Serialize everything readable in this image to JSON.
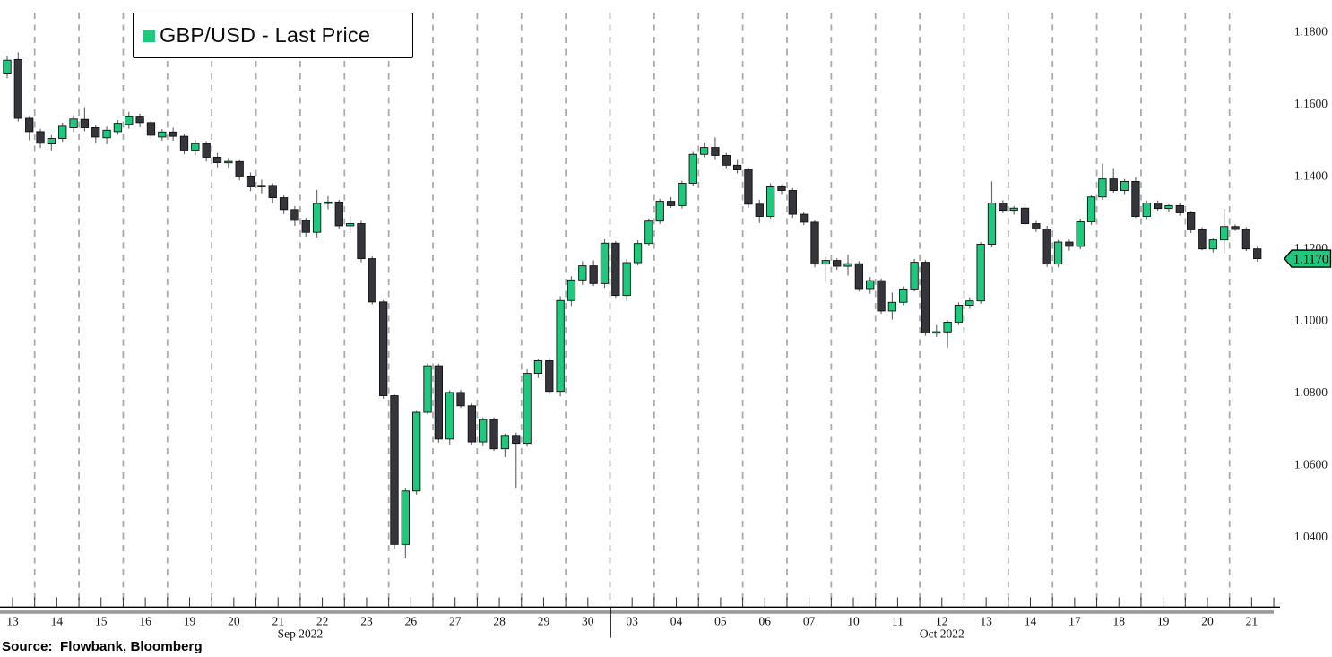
{
  "legend": {
    "label": "GBP/USD - Last Price",
    "marker_color": "#1fc87c"
  },
  "source_note": "Source:  Flowbank, Bloomberg",
  "last_price_tag": {
    "text": "1.1170",
    "value": 1.117,
    "color": "#1fc87c"
  },
  "y_axis": {
    "tick_labels": [
      "1.1800",
      "1.1600",
      "1.1400",
      "1.1200",
      "1.1000",
      "1.0800",
      "1.0600",
      "1.0400"
    ],
    "tick_values": [
      1.18,
      1.16,
      1.14,
      1.12,
      1.1,
      1.08,
      1.06,
      1.04
    ]
  },
  "x_axis": {
    "months": [
      {
        "label": "Sep 2022",
        "day_labels": [
          "13",
          "14",
          "15",
          "16",
          "19",
          "20",
          "21",
          "22",
          "23",
          "26",
          "27",
          "28",
          "29",
          "30"
        ]
      },
      {
        "label": "Oct 2022",
        "day_labels": [
          "03",
          "04",
          "05",
          "06",
          "07",
          "10",
          "11",
          "12",
          "13",
          "14",
          "17",
          "18",
          "19",
          "20",
          "21"
        ]
      }
    ]
  },
  "chart_data": {
    "type": "candlestick",
    "instrument": "GBP/USD",
    "field": "Last Price",
    "title": "GBP/USD - Last Price",
    "candles_per_day": 4,
    "ylim": [
      1.03,
      1.185
    ],
    "grid": "vertical-dashed-daily",
    "legend_position": "top-left",
    "up_color": "#1fc87c",
    "down_color": "#35363c",
    "wick_color": "#6f6f6f",
    "grid_color": "#ababab",
    "ohlc": [
      [
        1.1682,
        1.1732,
        1.167,
        1.172
      ],
      [
        1.1722,
        1.1742,
        1.155,
        1.1559
      ],
      [
        1.1559,
        1.1566,
        1.1498,
        1.1522
      ],
      [
        1.1522,
        1.153,
        1.1477,
        1.149
      ],
      [
        1.1488,
        1.1512,
        1.147,
        1.1503
      ],
      [
        1.1503,
        1.1547,
        1.1494,
        1.1537
      ],
      [
        1.1533,
        1.1568,
        1.1521,
        1.1557
      ],
      [
        1.1556,
        1.159,
        1.1523,
        1.1533
      ],
      [
        1.1533,
        1.1541,
        1.1489,
        1.1507
      ],
      [
        1.1505,
        1.1536,
        1.1487,
        1.1526
      ],
      [
        1.1522,
        1.1554,
        1.1513,
        1.1545
      ],
      [
        1.1542,
        1.1577,
        1.153,
        1.1565
      ],
      [
        1.1565,
        1.1572,
        1.1534,
        1.1547
      ],
      [
        1.1547,
        1.1553,
        1.1501,
        1.1512
      ],
      [
        1.1507,
        1.1529,
        1.1497,
        1.1521
      ],
      [
        1.1521,
        1.1533,
        1.1497,
        1.1509
      ],
      [
        1.1509,
        1.1516,
        1.1459,
        1.1471
      ],
      [
        1.1471,
        1.1499,
        1.1457,
        1.1489
      ],
      [
        1.1489,
        1.1496,
        1.1439,
        1.1451
      ],
      [
        1.1451,
        1.1463,
        1.1423,
        1.1436
      ],
      [
        1.1436,
        1.1449,
        1.1422,
        1.1439
      ],
      [
        1.1439,
        1.1445,
        1.1387,
        1.1399
      ],
      [
        1.1399,
        1.1409,
        1.1357,
        1.1369
      ],
      [
        1.1369,
        1.1389,
        1.1351,
        1.1373
      ],
      [
        1.1373,
        1.1379,
        1.1324,
        1.1339
      ],
      [
        1.1339,
        1.1346,
        1.1294,
        1.1306
      ],
      [
        1.1306,
        1.1316,
        1.1261,
        1.1276
      ],
      [
        1.1276,
        1.1283,
        1.1231,
        1.1243
      ],
      [
        1.1243,
        1.1361,
        1.1229,
        1.1323
      ],
      [
        1.1323,
        1.1343,
        1.1307,
        1.1327
      ],
      [
        1.1327,
        1.1333,
        1.1251,
        1.1261
      ],
      [
        1.1261,
        1.1287,
        1.1241,
        1.1267
      ],
      [
        1.1267,
        1.1275,
        1.116,
        1.117
      ],
      [
        1.117,
        1.1176,
        1.1043,
        1.105
      ],
      [
        1.105,
        1.1055,
        1.0782,
        1.079
      ],
      [
        1.079,
        1.0794,
        1.0364,
        1.0378
      ],
      [
        1.0378,
        1.0533,
        1.0339,
        1.0526
      ],
      [
        1.0526,
        1.075,
        1.0516,
        1.0744
      ],
      [
        1.0744,
        1.088,
        1.0738,
        1.0873
      ],
      [
        1.0873,
        1.0879,
        1.066,
        1.067
      ],
      [
        1.067,
        1.0805,
        1.0655,
        1.0799
      ],
      [
        1.0799,
        1.0806,
        1.0756,
        1.0762
      ],
      [
        1.0762,
        1.0768,
        1.0655,
        1.0662
      ],
      [
        1.0662,
        1.073,
        1.065,
        1.0724
      ],
      [
        1.0724,
        1.073,
        1.0637,
        1.0643
      ],
      [
        1.0643,
        1.0685,
        1.062,
        1.068
      ],
      [
        1.068,
        1.0688,
        1.0533,
        1.0658
      ],
      [
        1.0658,
        1.0863,
        1.0649,
        1.0852
      ],
      [
        1.0852,
        1.0893,
        1.0839,
        1.0887
      ],
      [
        1.0887,
        1.0894,
        1.0794,
        1.0802
      ],
      [
        1.0802,
        1.1066,
        1.0788,
        1.1054
      ],
      [
        1.1054,
        1.1121,
        1.1039,
        1.1111
      ],
      [
        1.1111,
        1.1163,
        1.1097,
        1.115
      ],
      [
        1.115,
        1.1165,
        1.1094,
        1.1101
      ],
      [
        1.1101,
        1.1224,
        1.1089,
        1.1213
      ],
      [
        1.1213,
        1.1219,
        1.1059,
        1.1068
      ],
      [
        1.1068,
        1.1169,
        1.1053,
        1.1159
      ],
      [
        1.1159,
        1.1221,
        1.1151,
        1.1212
      ],
      [
        1.1212,
        1.1281,
        1.1206,
        1.1274
      ],
      [
        1.1274,
        1.1336,
        1.1266,
        1.1329
      ],
      [
        1.1329,
        1.1341,
        1.1311,
        1.1317
      ],
      [
        1.1317,
        1.1386,
        1.1309,
        1.1379
      ],
      [
        1.1379,
        1.1466,
        1.1371,
        1.1459
      ],
      [
        1.1459,
        1.1491,
        1.1451,
        1.1478
      ],
      [
        1.1478,
        1.1506,
        1.1446,
        1.1456
      ],
      [
        1.1456,
        1.1463,
        1.1421,
        1.1429
      ],
      [
        1.1429,
        1.1446,
        1.1406,
        1.1416
      ],
      [
        1.1416,
        1.1423,
        1.1311,
        1.1321
      ],
      [
        1.1321,
        1.1333,
        1.1269,
        1.1287
      ],
      [
        1.1287,
        1.1379,
        1.1281,
        1.1369
      ],
      [
        1.1369,
        1.1375,
        1.1349,
        1.1359
      ],
      [
        1.1359,
        1.1365,
        1.1283,
        1.1293
      ],
      [
        1.1293,
        1.1299,
        1.1263,
        1.1271
      ],
      [
        1.1271,
        1.1277,
        1.1146,
        1.1155
      ],
      [
        1.1155,
        1.1175,
        1.1109,
        1.1165
      ],
      [
        1.1165,
        1.1171,
        1.1139,
        1.1149
      ],
      [
        1.1149,
        1.1181,
        1.1123,
        1.1156
      ],
      [
        1.1156,
        1.1163,
        1.1079,
        1.1087
      ],
      [
        1.1087,
        1.1119,
        1.1073,
        1.1109
      ],
      [
        1.1109,
        1.1115,
        1.1017,
        1.1025
      ],
      [
        1.1025,
        1.1076,
        1.1001,
        1.1049
      ],
      [
        1.1049,
        1.1093,
        1.1041,
        1.1086
      ],
      [
        1.1086,
        1.1169,
        1.1079,
        1.116
      ],
      [
        1.116,
        1.1166,
        1.0956,
        1.0964
      ],
      [
        1.0964,
        1.0986,
        1.0953,
        1.0967
      ],
      [
        1.0967,
        1.0999,
        1.0923,
        1.0994
      ],
      [
        1.0994,
        1.1049,
        1.0986,
        1.1041
      ],
      [
        1.1041,
        1.1063,
        1.1031,
        1.1053
      ],
      [
        1.1053,
        1.1216,
        1.1045,
        1.121
      ],
      [
        1.121,
        1.1384,
        1.1201,
        1.1324
      ],
      [
        1.1324,
        1.1332,
        1.1296,
        1.1304
      ],
      [
        1.1304,
        1.1316,
        1.1292,
        1.131
      ],
      [
        1.131,
        1.1322,
        1.1262,
        1.1267
      ],
      [
        1.1267,
        1.1274,
        1.1244,
        1.1252
      ],
      [
        1.1252,
        1.1261,
        1.1147,
        1.1155
      ],
      [
        1.1155,
        1.1222,
        1.1146,
        1.1216
      ],
      [
        1.1216,
        1.1223,
        1.1192,
        1.1204
      ],
      [
        1.1204,
        1.1281,
        1.1196,
        1.1272
      ],
      [
        1.1272,
        1.1346,
        1.1263,
        1.1341
      ],
      [
        1.1341,
        1.1433,
        1.1333,
        1.1391
      ],
      [
        1.1391,
        1.1421,
        1.1353,
        1.1359
      ],
      [
        1.1359,
        1.1391,
        1.1349,
        1.1384
      ],
      [
        1.1384,
        1.1396,
        1.1283,
        1.1287
      ],
      [
        1.1287,
        1.1331,
        1.1279,
        1.1324
      ],
      [
        1.1324,
        1.1331,
        1.1303,
        1.1309
      ],
      [
        1.1309,
        1.1321,
        1.1299,
        1.1317
      ],
      [
        1.1317,
        1.1323,
        1.1289,
        1.1297
      ],
      [
        1.1297,
        1.1303,
        1.1241,
        1.125
      ],
      [
        1.125,
        1.1257,
        1.1193,
        1.1197
      ],
      [
        1.1197,
        1.1227,
        1.1187,
        1.1222
      ],
      [
        1.1222,
        1.1309,
        1.1185,
        1.1259
      ],
      [
        1.1259,
        1.1265,
        1.1247,
        1.1251
      ],
      [
        1.1251,
        1.1257,
        1.1191,
        1.1197
      ],
      [
        1.1197,
        1.1203,
        1.1161,
        1.117
      ]
    ]
  }
}
